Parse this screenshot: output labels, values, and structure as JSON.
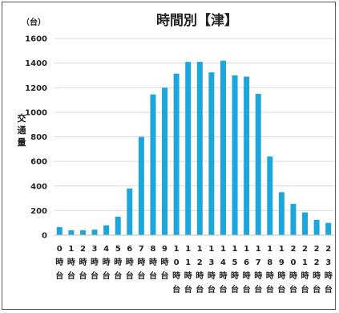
{
  "chart_data": {
    "type": "bar",
    "title": "時間別【津】",
    "unit": "（台）",
    "ylabel": "交通量",
    "ylim": [
      0,
      1600
    ],
    "yticks": [
      0,
      200,
      400,
      600,
      800,
      1000,
      1200,
      1400,
      1600
    ],
    "grid": true,
    "legend": "none",
    "categories": [
      "0時台",
      "1時台",
      "2時台",
      "3時台",
      "4時台",
      "5時台",
      "6時台",
      "7時台",
      "8時台",
      "9時台",
      "10時台",
      "11時台",
      "12時台",
      "13時台",
      "14時台",
      "15時台",
      "16時台",
      "17時台",
      "18時台",
      "19時台",
      "20時台",
      "21時台",
      "22時台",
      "23時台"
    ],
    "values": [
      65,
      40,
      40,
      45,
      80,
      150,
      380,
      800,
      1145,
      1200,
      1315,
      1410,
      1410,
      1325,
      1420,
      1300,
      1290,
      1150,
      640,
      350,
      255,
      185,
      125,
      100
    ],
    "color": "#1ca6dc"
  }
}
